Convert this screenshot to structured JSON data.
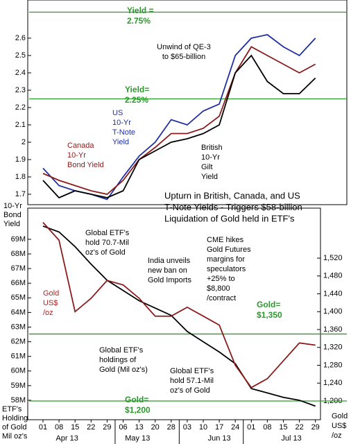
{
  "chart_data": {
    "type": "line",
    "categories": [
      "01",
      "08",
      "15",
      "22",
      "29",
      "06",
      "13",
      "20",
      "28",
      "03",
      "10",
      "17",
      "24",
      "01",
      "08",
      "15",
      "22",
      "29"
    ],
    "months": [
      "Apr 13",
      "May 13",
      "Jun 13",
      "Jul 13"
    ],
    "panels": [
      {
        "ylim": [
          1.64,
          2.82
        ],
        "yticks": [
          1.7,
          1.8,
          1.9,
          2,
          2.1,
          2.2,
          2.3,
          2.4,
          2.5,
          2.6
        ],
        "ylabel": [
          "10-Yr",
          "Bond",
          "Yield"
        ],
        "series": [
          {
            "name": "US",
            "color": "#1f2fa0",
            "values": [
              1.85,
              1.75,
              1.72,
              1.7,
              1.67,
              1.8,
              1.92,
              2.0,
              2.13,
              2.1,
              2.18,
              2.22,
              2.5,
              2.6,
              2.62,
              2.55,
              2.5,
              2.6
            ]
          },
          {
            "name": "Canada",
            "color": "#8b1a1a",
            "values": [
              1.82,
              1.78,
              1.75,
              1.72,
              1.7,
              1.78,
              1.9,
              1.97,
              2.05,
              2.05,
              2.08,
              2.15,
              2.4,
              2.55,
              2.5,
              2.45,
              2.4,
              2.45
            ]
          },
          {
            "name": "British",
            "color": "#000000",
            "values": [
              1.78,
              1.68,
              1.72,
              1.7,
              1.68,
              1.72,
              1.9,
              1.95,
              2.0,
              2.02,
              2.05,
              2.1,
              2.4,
              2.5,
              2.35,
              2.28,
              2.28,
              2.37
            ]
          }
        ],
        "reference_lines": [
          {
            "value": 2.75,
            "lines": [
              "Yield =",
              "2.75%"
            ],
            "color": "#2a9a2a"
          },
          {
            "value": 2.25,
            "lines": [
              "Yield=",
              "2.25%"
            ],
            "color": "#2a9a2a"
          }
        ],
        "annotations": [
          {
            "lines": [
              "Unwind of QE-3",
              "to $65-billion"
            ]
          },
          {
            "lines": [
              "US",
              "10-Yr",
              "T-Note",
              "Yield"
            ],
            "color": "#1f2fa0"
          },
          {
            "lines": [
              "Canada",
              "10-Yr",
              "Bond Yield"
            ],
            "color": "#8b1a1a"
          },
          {
            "lines": [
              "British",
              "10-Yr",
              "Gilt",
              "Yield"
            ]
          },
          {
            "lines": [
              "Upturn in British, Canada, and US",
              "T-Note Yields - Triggers $58-billion",
              "Liquidation of Gold held in ETF's"
            ]
          }
        ]
      },
      {
        "ylim": [
          56.67,
          71.13
        ],
        "yticks": [
          {
            "value": 58,
            "label": "58M"
          },
          {
            "value": 59,
            "label": "59M"
          },
          {
            "value": 60,
            "label": "60M"
          },
          {
            "value": 61,
            "label": "61M"
          },
          {
            "value": 62,
            "label": "62M"
          },
          {
            "value": 63,
            "label": "63M"
          },
          {
            "value": 64,
            "label": "64M"
          },
          {
            "value": 65,
            "label": "65M"
          },
          {
            "value": 66,
            "label": "66M"
          },
          {
            "value": 67,
            "label": "67M"
          },
          {
            "value": 68,
            "label": "68M"
          },
          {
            "value": 69,
            "label": "69M"
          }
        ],
        "y2lim": [
          1158,
          1632
        ],
        "y2ticks": [
          {
            "value": 1200,
            "label": "1,200"
          },
          {
            "value": 1240,
            "label": "1,240"
          },
          {
            "value": 1280,
            "label": "1,280"
          },
          {
            "value": 1320,
            "label": "1,320"
          },
          {
            "value": 1360,
            "label": "1,360"
          },
          {
            "value": 1400,
            "label": "1,400"
          },
          {
            "value": 1440,
            "label": "1,440"
          },
          {
            "value": 1480,
            "label": "1,480"
          },
          {
            "value": 1520,
            "label": "1,520"
          }
        ],
        "ylabel": [
          "ETF's",
          "Holding",
          "of Gold",
          "Mil oz's"
        ],
        "y2label": [
          "Gold",
          "US$",
          "/oz"
        ],
        "series": [
          {
            "name": "ETF holdings",
            "color": "#000000",
            "values": [
              69.9,
              69.5,
              68.5,
              67.3,
              66.2,
              65.5,
              64.8,
              64.3,
              63.8,
              62.7,
              62.0,
              61.3,
              60.5,
              58.8,
              58.5,
              58.2,
              58.0,
              57.6
            ]
          },
          {
            "name": "Gold",
            "color": "#8b1a1a",
            "axis": "y2",
            "values": [
              1600,
              1560,
              1400,
              1430,
              1470,
              1460,
              1430,
              1390,
              1390,
              1410,
              1390,
              1370,
              1280,
              1230,
              1250,
              1290,
              1330,
              1325
            ]
          }
        ],
        "reference_lines": [
          {
            "value": 1350,
            "axis": "y2",
            "lines": [
              "Gold=",
              "$1,350"
            ],
            "color": "#2a9a2a"
          },
          {
            "value": 1200,
            "axis": "y2",
            "lines": [
              "Gold=",
              "$1,200"
            ],
            "color": "#2a9a2a"
          }
        ],
        "annotations": [
          {
            "lines": [
              "Global ETF's",
              "hold 70.7-Mil",
              "oz's of Gold"
            ]
          },
          {
            "lines": [
              "India unveils",
              "new ban on",
              "Gold Imports"
            ]
          },
          {
            "lines": [
              "CME hikes",
              "Gold Futures",
              "margins for",
              "speculators",
              "+25% to",
              "$8,800",
              "/contract"
            ]
          },
          {
            "lines": [
              "Gold",
              "US$",
              "/oz"
            ],
            "color": "#b22222"
          },
          {
            "lines": [
              "Global ETF's",
              "holdings of",
              "Gold (Mil oz's)"
            ]
          },
          {
            "lines": [
              "Global ETF's",
              "hold 57.1-Mil",
              "oz's of Gold"
            ]
          }
        ]
      }
    ]
  }
}
